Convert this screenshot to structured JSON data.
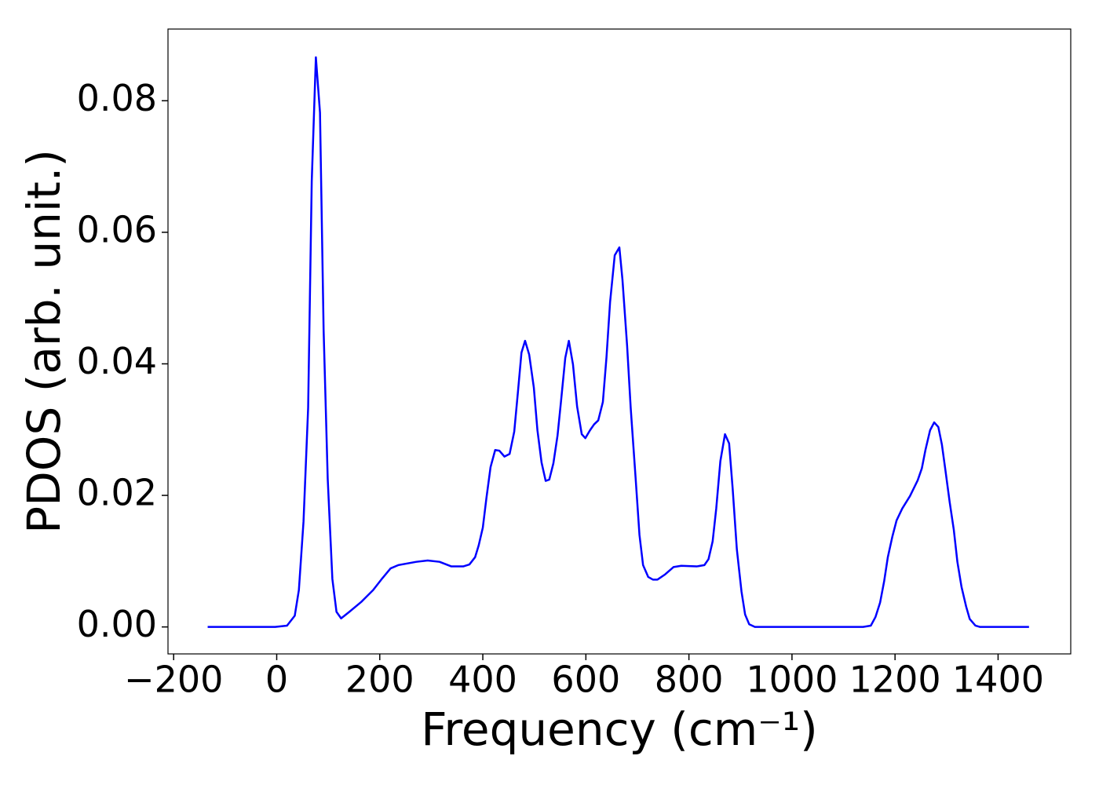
{
  "chart_data": {
    "type": "line",
    "xlabel": "Frequency (cm⁻¹)",
    "ylabel": "PDOS (arb. unit.)",
    "xlim": [
      -211,
      1541
    ],
    "ylim": [
      -0.0041,
      0.0909
    ],
    "xticks": [
      {
        "value": -200,
        "label": "−200"
      },
      0,
      200,
      400,
      600,
      800,
      1000,
      1200,
      1400
    ],
    "yticks": [
      {
        "value": 0,
        "label": "0.00"
      },
      0.02,
      0.04,
      0.06,
      0.08
    ],
    "grid": false,
    "series": [
      {
        "color": "#0000ff",
        "x": [
          -134,
          -3,
          20,
          35,
          43,
          52,
          61,
          68,
          76,
          84,
          91,
          99,
          108,
          116,
          125,
          141,
          164,
          187,
          205,
          221,
          236,
          271,
          293,
          316,
          339,
          362,
          374,
          385,
          392,
          400,
          407,
          415,
          424,
          432,
          442,
          452,
          461,
          468,
          475,
          482,
          490,
          499,
          506,
          514,
          522,
          529,
          537,
          545,
          552,
          560,
          567,
          575,
          583,
          592,
          599,
          608,
          616,
          624,
          633,
          640,
          647,
          656,
          665,
          671,
          680,
          687,
          697,
          704,
          711,
          721,
          730,
          739,
          754,
          770,
          785,
          815,
          830,
          838,
          846,
          853,
          861,
          870,
          878,
          885,
          893,
          902,
          909,
          917,
          928,
          1138,
          1153,
          1162,
          1171,
          1179,
          1186,
          1195,
          1203,
          1214,
          1229,
          1244,
          1252,
          1259,
          1268,
          1276,
          1284,
          1291,
          1298,
          1306,
          1314,
          1321,
          1329,
          1338,
          1345,
          1356,
          1365,
          1460
        ],
        "values": [
          0,
          0,
          0.0002,
          0.0017,
          0.0056,
          0.016,
          0.0333,
          0.0678,
          0.0866,
          0.0782,
          0.0452,
          0.0225,
          0.0073,
          0.0023,
          0.0013,
          0.0023,
          0.0038,
          0.0056,
          0.0074,
          0.0089,
          0.0094,
          0.0099,
          0.0101,
          0.0099,
          0.0092,
          0.0092,
          0.0095,
          0.0106,
          0.0124,
          0.0151,
          0.0196,
          0.0243,
          0.0269,
          0.0268,
          0.0259,
          0.0263,
          0.0297,
          0.0356,
          0.0417,
          0.0435,
          0.0414,
          0.0364,
          0.0299,
          0.025,
          0.0222,
          0.0224,
          0.0249,
          0.0291,
          0.0345,
          0.0409,
          0.0435,
          0.0399,
          0.0335,
          0.0293,
          0.0287,
          0.0299,
          0.0308,
          0.0314,
          0.0342,
          0.041,
          0.0494,
          0.0565,
          0.0577,
          0.0528,
          0.0428,
          0.0333,
          0.0221,
          0.014,
          0.0094,
          0.0076,
          0.0072,
          0.0072,
          0.008,
          0.0091,
          0.0093,
          0.0092,
          0.0094,
          0.0103,
          0.013,
          0.018,
          0.0252,
          0.0293,
          0.0279,
          0.0209,
          0.0118,
          0.0054,
          0.0019,
          0.0004,
          0,
          0,
          0.0002,
          0.0015,
          0.0037,
          0.007,
          0.0106,
          0.0138,
          0.0162,
          0.018,
          0.0199,
          0.0223,
          0.0241,
          0.0269,
          0.0299,
          0.0311,
          0.0304,
          0.0277,
          0.0237,
          0.019,
          0.0148,
          0.0099,
          0.0061,
          0.0031,
          0.0012,
          0.0002,
          0,
          0
        ]
      }
    ]
  }
}
